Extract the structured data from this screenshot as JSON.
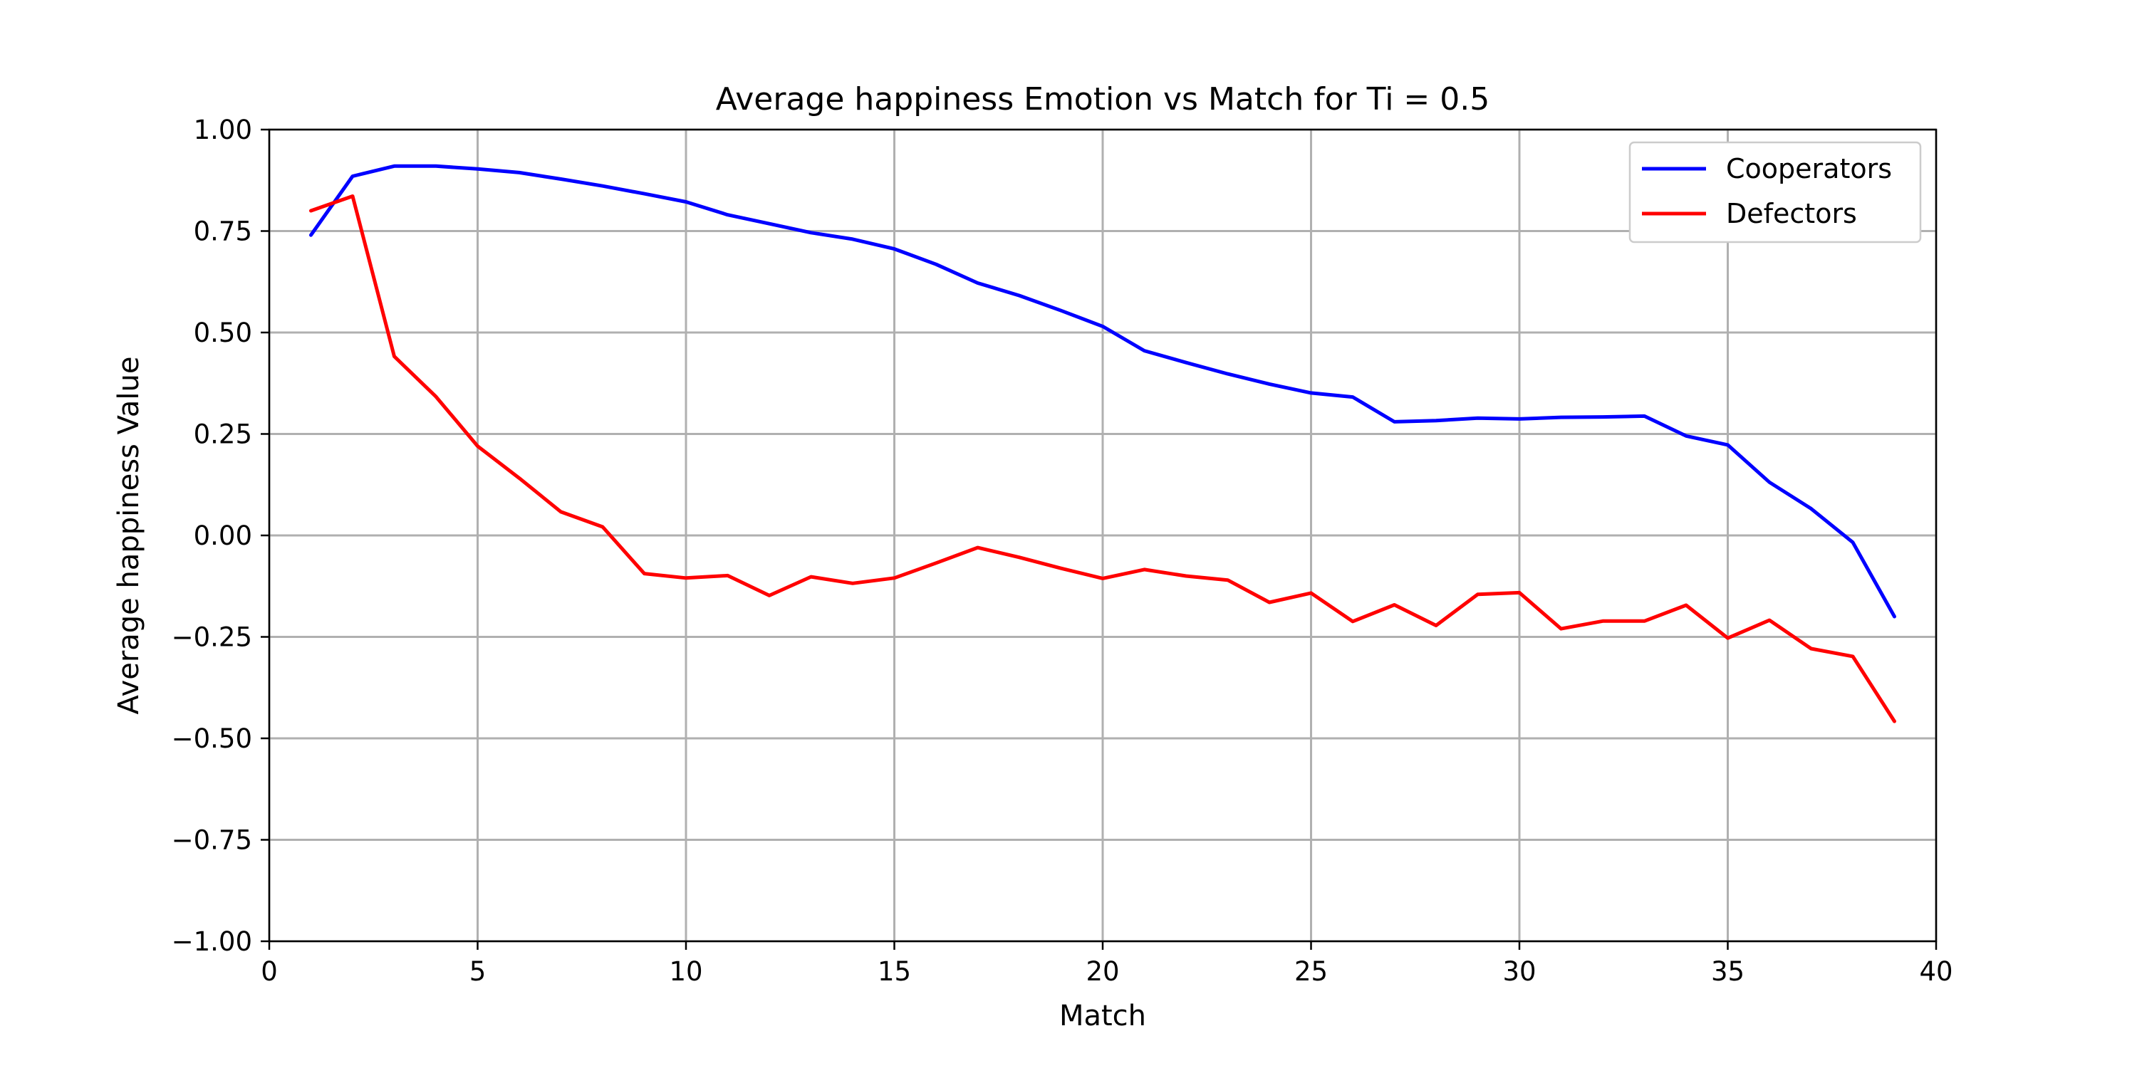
{
  "chart_data": {
    "type": "line",
    "title": "Average happiness Emotion vs Match for Ti = 0.5",
    "xlabel": "Match",
    "ylabel": "Average happiness Value",
    "xlim": [
      0,
      40
    ],
    "ylim": [
      -1.0,
      1.0
    ],
    "xticks": [
      0,
      5,
      10,
      15,
      20,
      25,
      30,
      35,
      40
    ],
    "xtick_labels": [
      "0",
      "5",
      "10",
      "15",
      "20",
      "25",
      "30",
      "35",
      "40"
    ],
    "yticks": [
      -1.0,
      -0.75,
      -0.5,
      -0.25,
      0.0,
      0.25,
      0.5,
      0.75,
      1.0
    ],
    "ytick_labels": [
      "−1.00",
      "−0.75",
      "−0.50",
      "−0.25",
      "0.00",
      "0.25",
      "0.50",
      "0.75",
      "1.00"
    ],
    "grid": true,
    "legend_position": "top-right",
    "x": [
      1,
      2,
      3,
      4,
      5,
      6,
      7,
      8,
      9,
      10,
      11,
      12,
      13,
      14,
      15,
      16,
      17,
      18,
      19,
      20,
      21,
      22,
      23,
      24,
      25,
      26,
      27,
      28,
      29,
      30,
      31,
      32,
      33,
      34,
      35,
      36,
      37,
      38,
      39
    ],
    "series": [
      {
        "name": "Cooperators",
        "color": "#0000ff",
        "values": [
          0.74,
          0.885,
          0.91,
          0.91,
          0.903,
          0.894,
          0.878,
          0.861,
          0.842,
          0.822,
          0.79,
          0.768,
          0.746,
          0.73,
          0.706,
          0.668,
          0.622,
          0.591,
          0.554,
          0.515,
          0.455,
          0.426,
          0.398,
          0.373,
          0.351,
          0.341,
          0.28,
          0.283,
          0.289,
          0.287,
          0.291,
          0.292,
          0.294,
          0.245,
          0.223,
          0.131,
          0.066,
          -0.017,
          -0.2
        ]
      },
      {
        "name": "Defectors",
        "color": "#ff0000",
        "values": [
          0.8,
          0.836,
          0.441,
          0.342,
          0.22,
          0.141,
          0.058,
          0.021,
          -0.094,
          -0.105,
          -0.099,
          -0.148,
          -0.102,
          -0.118,
          -0.105,
          -0.068,
          -0.03,
          -0.054,
          -0.081,
          -0.106,
          -0.084,
          -0.1,
          -0.11,
          -0.165,
          -0.142,
          -0.212,
          -0.171,
          -0.222,
          -0.145,
          -0.141,
          -0.23,
          -0.211,
          -0.211,
          -0.172,
          -0.253,
          -0.209,
          -0.279,
          -0.298,
          -0.458
        ]
      }
    ]
  }
}
